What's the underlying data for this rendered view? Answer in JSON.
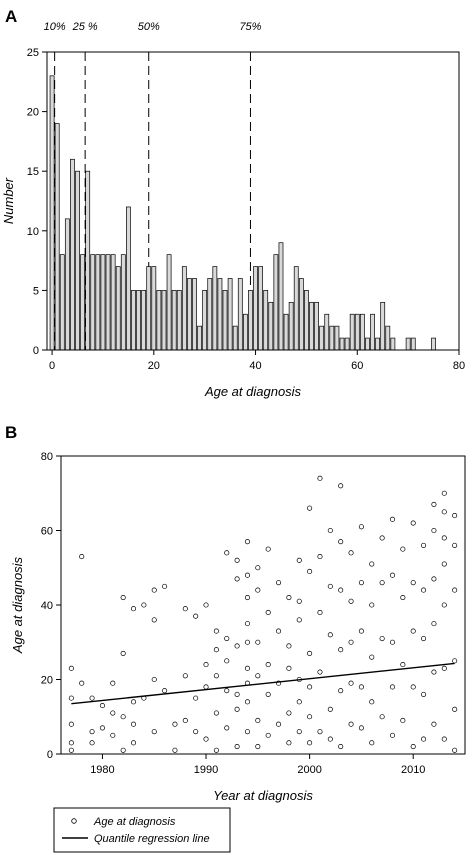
{
  "chart_data": [
    {
      "panel": "A",
      "type": "bar",
      "xlabel": "Age at diagnosis",
      "ylabel": "Number",
      "xlim": [
        -1,
        80
      ],
      "ylim": [
        0,
        25
      ],
      "xticks": [
        0,
        20,
        40,
        60,
        80
      ],
      "yticks": [
        0,
        5,
        10,
        15,
        20,
        25
      ],
      "percentiles": [
        {
          "label": "10%",
          "x": 0.5
        },
        {
          "label": "25 %",
          "x": 6.5
        },
        {
          "label": "50%",
          "x": 19
        },
        {
          "label": "75%",
          "x": 39
        }
      ],
      "bin_width": 0.8,
      "x": [
        0,
        1,
        2,
        3,
        4,
        5,
        6,
        7,
        8,
        9,
        10,
        11,
        12,
        13,
        14,
        15,
        16,
        17,
        18,
        19,
        20,
        21,
        22,
        23,
        24,
        25,
        26,
        27,
        28,
        29,
        30,
        31,
        32,
        33,
        34,
        35,
        36,
        37,
        38,
        39,
        40,
        41,
        42,
        43,
        44,
        45,
        46,
        47,
        48,
        49,
        50,
        51,
        52,
        53,
        54,
        55,
        56,
        57,
        58,
        59,
        60,
        61,
        62,
        63,
        64,
        65,
        66,
        67,
        70,
        71,
        75
      ],
      "values": [
        23,
        19,
        8,
        11,
        16,
        15,
        8,
        15,
        8,
        8,
        8,
        8,
        8,
        7,
        8,
        12,
        5,
        5,
        5,
        7,
        7,
        5,
        5,
        8,
        5,
        5,
        7,
        6,
        6,
        2,
        5,
        6,
        7,
        6,
        5,
        6,
        2,
        6,
        3,
        5,
        7,
        7,
        5,
        4,
        8,
        9,
        3,
        4,
        7,
        6,
        5,
        4,
        4,
        2,
        3,
        2,
        2,
        1,
        1,
        3,
        3,
        3,
        1,
        3,
        1,
        4,
        2,
        1,
        1,
        1,
        1
      ]
    },
    {
      "panel": "B",
      "type": "scatter",
      "xlabel": "Year at diagnosis",
      "ylabel": "Age at diagnosis",
      "xlim": [
        1976,
        2015
      ],
      "ylim": [
        0,
        80
      ],
      "xticks": [
        1980,
        1990,
        2000,
        2010
      ],
      "yticks": [
        0,
        20,
        40,
        60,
        80
      ],
      "legend": [
        "Age at diagnosis",
        "Quantile regression line"
      ],
      "regression_line": {
        "x": [
          1977,
          2014
        ],
        "y": [
          13.5,
          24.3
        ]
      },
      "points_x": [
        1977,
        1977,
        1977,
        1977,
        1977,
        1978,
        1978,
        1979,
        1979,
        1979,
        1980,
        1980,
        1981,
        1981,
        1981,
        1982,
        1982,
        1982,
        1982,
        1983,
        1983,
        1983,
        1983,
        1984,
        1984,
        1985,
        1985,
        1985,
        1985,
        1986,
        1986,
        1987,
        1987,
        1988,
        1988,
        1988,
        1989,
        1989,
        1989,
        1990,
        1990,
        1990,
        1990,
        1991,
        1991,
        1991,
        1991,
        1991,
        1992,
        1992,
        1992,
        1992,
        1992,
        1993,
        1993,
        1993,
        1993,
        1993,
        1993,
        1994,
        1994,
        1994,
        1994,
        1994,
        1994,
        1994,
        1994,
        1994,
        1995,
        1995,
        1995,
        1995,
        1995,
        1995,
        1996,
        1996,
        1996,
        1996,
        1996,
        1997,
        1997,
        1997,
        1997,
        1998,
        1998,
        1998,
        1998,
        1998,
        1999,
        1999,
        1999,
        1999,
        1999,
        1999,
        2000,
        2000,
        2000,
        2000,
        2000,
        2000,
        2001,
        2001,
        2001,
        2001,
        2001,
        2002,
        2002,
        2002,
        2002,
        2002,
        2003,
        2003,
        2003,
        2003,
        2003,
        2003,
        2004,
        2004,
        2004,
        2004,
        2004,
        2005,
        2005,
        2005,
        2005,
        2005,
        2006,
        2006,
        2006,
        2006,
        2006,
        2007,
        2007,
        2007,
        2007,
        2008,
        2008,
        2008,
        2008,
        2008,
        2009,
        2009,
        2009,
        2009,
        2010,
        2010,
        2010,
        2010,
        2010,
        2011,
        2011,
        2011,
        2011,
        2011,
        2012,
        2012,
        2012,
        2012,
        2012,
        2012,
        2013,
        2013,
        2013,
        2013,
        2013,
        2013,
        2013,
        2014,
        2014,
        2014,
        2014,
        2014,
        2014
      ],
      "points_y": [
        23,
        15,
        8,
        3,
        1,
        53,
        19,
        15,
        6,
        3,
        7,
        13,
        19,
        11,
        5,
        42,
        27,
        1,
        10,
        39,
        14,
        8,
        3,
        40,
        15,
        36,
        44,
        6,
        20,
        45,
        17,
        8,
        1,
        39,
        21,
        9,
        37,
        15,
        6,
        40,
        24,
        18,
        4,
        33,
        28,
        21,
        11,
        1,
        54,
        31,
        25,
        17,
        7,
        52,
        47,
        29,
        16,
        12,
        2,
        57,
        48,
        42,
        35,
        30,
        23,
        19,
        14,
        6,
        50,
        44,
        30,
        21,
        9,
        2,
        55,
        38,
        24,
        16,
        5,
        46,
        33,
        19,
        8,
        42,
        29,
        23,
        11,
        3,
        52,
        41,
        36,
        20,
        14,
        6,
        66,
        49,
        27,
        18,
        10,
        3,
        74,
        53,
        38,
        22,
        6,
        60,
        45,
        32,
        12,
        4,
        72,
        57,
        44,
        28,
        17,
        2,
        54,
        41,
        30,
        19,
        8,
        61,
        46,
        33,
        18,
        7,
        51,
        40,
        26,
        14,
        3,
        58,
        46,
        31,
        10,
        63,
        48,
        30,
        18,
        5,
        55,
        42,
        24,
        9,
        62,
        46,
        33,
        18,
        2,
        56,
        44,
        31,
        16,
        4,
        67,
        60,
        47,
        35,
        22,
        8,
        70,
        65,
        58,
        51,
        40,
        23,
        4,
        64,
        56,
        44,
        25,
        12,
        1
      ]
    }
  ]
}
